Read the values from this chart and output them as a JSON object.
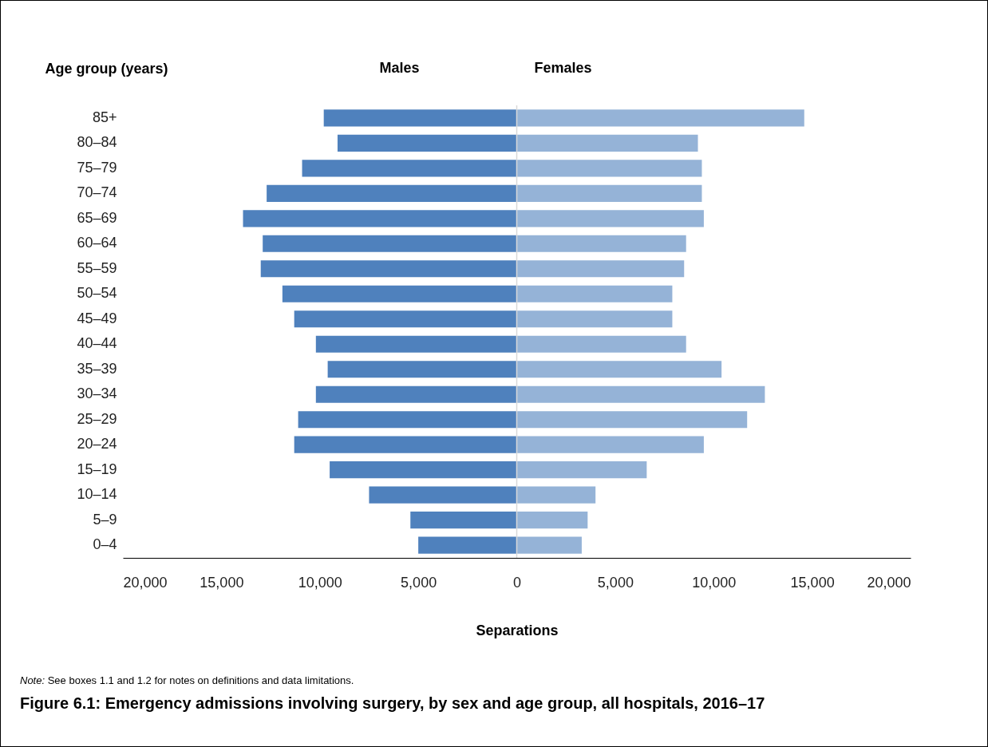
{
  "chart_data": {
    "type": "bar",
    "orientation": "horizontal",
    "title": "Figure 6.1: Emergency admissions involving surgery, by sex and age group, all hospitals, 2016–17",
    "xlabel": "Separations",
    "ylabel": "Age group (years)",
    "annotations": [
      "Note: See boxes 1.1 and 1.2 for notes on definitions and data limitations."
    ],
    "categories": [
      "85+",
      "80–84",
      "75–79",
      "70–74",
      "65–69",
      "60–64",
      "55–59",
      "50–54",
      "45–49",
      "40–44",
      "35–39",
      "30–34",
      "25–29",
      "20–24",
      "15–19",
      "10–14",
      "5–9",
      "0–4"
    ],
    "series": [
      {
        "name": "Males",
        "color": "#4f81bd",
        "values": [
          -9800,
          -9100,
          -10900,
          -12700,
          -13900,
          -12900,
          -13000,
          -11900,
          -11300,
          -10200,
          -9600,
          -10200,
          -11100,
          -11300,
          -9500,
          -7500,
          -5400,
          -5000
        ]
      },
      {
        "name": "Females",
        "color": "#95b3d7",
        "values": [
          14600,
          9200,
          9400,
          9400,
          9500,
          8600,
          8500,
          7900,
          7900,
          8600,
          10400,
          12600,
          11700,
          9500,
          6600,
          4000,
          3600,
          3300
        ]
      }
    ],
    "xlim": [
      -20000,
      20000
    ],
    "xticks": [
      {
        "value": -20000,
        "label": "20,000"
      },
      {
        "value": -15000,
        "label": "15,000"
      },
      {
        "value": -10000,
        "label": "10,000"
      },
      {
        "value": -5000,
        "label": "5,000"
      },
      0,
      {
        "value": 5000,
        "label": "5,000"
      },
      {
        "value": 10000,
        "label": "10,000"
      },
      {
        "value": 15000,
        "label": "15,000"
      },
      {
        "value": 20000,
        "label": "20,000"
      }
    ],
    "ref_lines": [
      {
        "axis": "x",
        "value": 0,
        "color": "#d9d9d9"
      }
    ],
    "grid": false,
    "legend": false,
    "stacked": true
  }
}
